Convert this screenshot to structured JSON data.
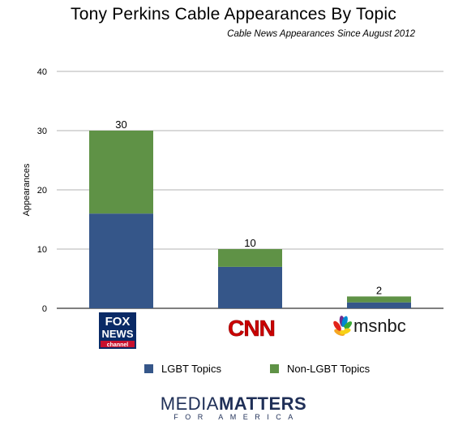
{
  "chart_data": {
    "type": "bar",
    "stacked": true,
    "title": "Tony Perkins Cable Appearances By Topic",
    "subtitle": "Cable News Appearances Since August 2012",
    "ylabel": "Appearances",
    "ylim": [
      0,
      40
    ],
    "yticks": [
      0,
      10,
      20,
      30,
      40
    ],
    "grid": true,
    "legend_position": "bottom",
    "categories": [
      "FOX NEWS Channel",
      "CNN",
      "msnbc"
    ],
    "series": [
      {
        "name": "LGBT Topics",
        "values": [
          16,
          7,
          1
        ],
        "color": "#355689"
      },
      {
        "name": "Non-LGBT Topics",
        "values": [
          14,
          3,
          1
        ],
        "color": "#5f9246"
      }
    ],
    "totals": [
      30,
      10,
      2
    ]
  },
  "logos": {
    "fox": {
      "line1": "FOX",
      "line2": "NEWS",
      "line3": "channel"
    },
    "cnn": {
      "text": "CNN"
    },
    "msnbc": {
      "text": "msnbc"
    }
  },
  "brand": {
    "part1": "MEDIA",
    "part2": "MATTERS",
    "tagline": "FOR AMERICA"
  }
}
